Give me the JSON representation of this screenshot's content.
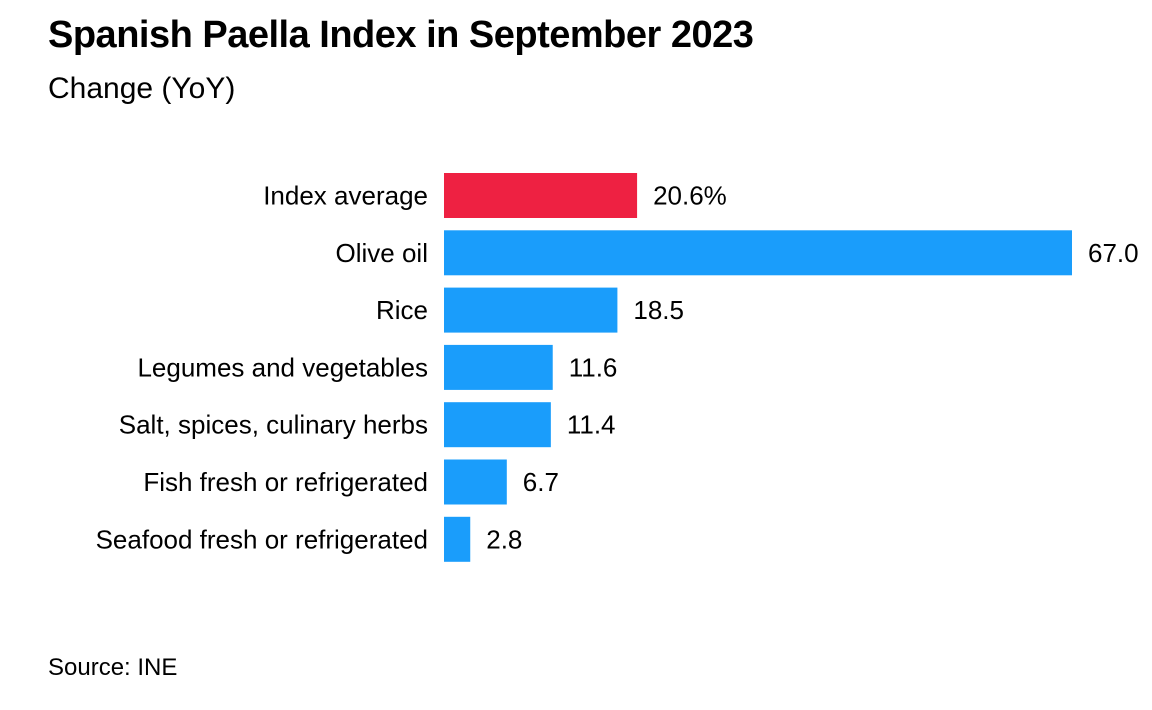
{
  "chart_data": {
    "type": "bar",
    "orientation": "horizontal",
    "title": "Spanish Paella Index in September 2023",
    "subtitle": "Change (YoY)",
    "source": "Source: INE",
    "categories": [
      "Index average",
      "Olive oil",
      "Rice",
      "Legumes and vegetables",
      "Salt, spices, culinary herbs",
      "Fish fresh or refrigerated",
      "Seafood fresh or refrigerated"
    ],
    "values": [
      20.6,
      67.0,
      18.5,
      11.6,
      11.4,
      6.7,
      2.8
    ],
    "value_labels": [
      "20.6%",
      "67.0",
      "18.5",
      "11.6",
      "11.4",
      "6.7",
      "2.8"
    ],
    "highlight_index": 0,
    "colors": {
      "highlight": "#ee2142",
      "default": "#1a9dfb"
    },
    "xlim": [
      0,
      67.0
    ],
    "grid": false,
    "legend": "none"
  }
}
